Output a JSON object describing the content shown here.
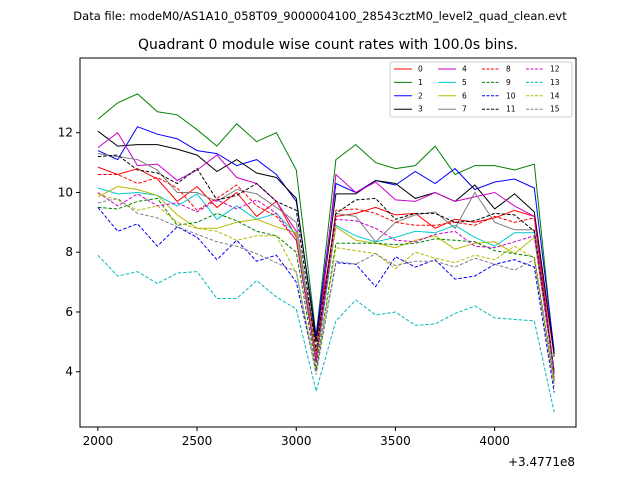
{
  "chart_data": {
    "type": "line",
    "suptitle": "Data file: modeM0/AS1A10_058T09_9000004100_28543cztM0_level2_quad_clean.evt",
    "title": "Quadrant 0 module wise count rates with 100.0s bins.",
    "xlabel": "",
    "ylabel": "",
    "offset_label": "+3.4771e8",
    "xlim": [
      1910,
      4410
    ],
    "ylim": [
      2.15,
      14.5
    ],
    "xticks": [
      2000,
      2500,
      3000,
      3500,
      4000
    ],
    "yticks": [
      4,
      6,
      8,
      10,
      12
    ],
    "grid": false,
    "legend_position": "top-right",
    "legend_columns": 4,
    "x": [
      2000,
      2100,
      2200,
      2300,
      2400,
      2500,
      2600,
      2700,
      2800,
      2900,
      3000,
      3100,
      3200,
      3300,
      3400,
      3500,
      3600,
      3700,
      3800,
      3900,
      4000,
      4100,
      4200,
      4300
    ],
    "series": [
      {
        "name": "0",
        "color": "#ff0000",
        "dash": "solid",
        "values": [
          10.85,
          10.6,
          10.8,
          10.45,
          9.7,
          10.2,
          9.5,
          10.0,
          9.2,
          9.7,
          8.5,
          5.0,
          9.2,
          9.3,
          9.5,
          9.25,
          9.3,
          8.8,
          9.1,
          9.0,
          9.15,
          9.4,
          9.2,
          4.5
        ]
      },
      {
        "name": "1",
        "color": "#008000",
        "dash": "solid",
        "values": [
          12.45,
          13.0,
          13.3,
          12.7,
          12.6,
          12.1,
          11.55,
          12.3,
          11.7,
          12.0,
          10.75,
          5.2,
          11.1,
          11.6,
          11.0,
          10.8,
          10.9,
          11.55,
          10.6,
          10.9,
          10.9,
          10.75,
          10.95,
          4.5
        ]
      },
      {
        "name": "2",
        "color": "#0000ff",
        "dash": "solid",
        "values": [
          11.4,
          11.1,
          12.2,
          11.95,
          11.8,
          11.4,
          11.3,
          10.9,
          11.1,
          10.6,
          9.7,
          5.2,
          10.3,
          10.0,
          10.4,
          10.25,
          10.7,
          10.3,
          10.8,
          10.1,
          10.35,
          10.45,
          10.15,
          4.7
        ]
      },
      {
        "name": "3",
        "color": "#000000",
        "dash": "solid",
        "values": [
          12.05,
          11.55,
          11.6,
          11.6,
          11.45,
          11.25,
          10.7,
          11.1,
          10.65,
          10.5,
          9.8,
          5.0,
          9.95,
          9.95,
          10.4,
          10.3,
          9.8,
          10.0,
          9.7,
          10.25,
          9.45,
          9.95,
          9.35,
          4.6
        ]
      },
      {
        "name": "4",
        "color": "#cc00cc",
        "dash": "solid",
        "values": [
          11.5,
          12.0,
          10.9,
          10.95,
          10.4,
          10.75,
          11.25,
          10.5,
          10.3,
          9.7,
          8.7,
          4.5,
          10.6,
          10.0,
          10.35,
          9.75,
          9.7,
          10.0,
          9.7,
          9.85,
          10.0,
          9.55,
          9.2,
          4.0
        ]
      },
      {
        "name": "5",
        "color": "#00cccc",
        "dash": "solid",
        "values": [
          10.15,
          9.95,
          10.0,
          9.9,
          9.55,
          9.95,
          9.1,
          9.55,
          9.1,
          9.3,
          8.6,
          4.3,
          8.9,
          8.55,
          8.35,
          8.5,
          8.7,
          8.65,
          8.9,
          8.5,
          8.2,
          8.65,
          8.65,
          4.0
        ]
      },
      {
        "name": "6",
        "color": "#b8b800",
        "dash": "solid",
        "values": [
          9.85,
          10.2,
          10.1,
          9.9,
          9.25,
          8.8,
          8.8,
          9.0,
          9.1,
          8.85,
          8.65,
          4.7,
          8.85,
          8.4,
          8.3,
          8.15,
          8.4,
          8.55,
          8.1,
          8.3,
          8.35,
          7.95,
          8.5,
          3.9
        ]
      },
      {
        "name": "7",
        "color": "#808080",
        "dash": "solid",
        "values": [
          11.3,
          11.2,
          11.1,
          10.75,
          10.0,
          10.0,
          9.7,
          10.1,
          9.95,
          9.5,
          9.0,
          4.4,
          9.3,
          9.2,
          8.35,
          9.0,
          9.25,
          9.35,
          8.8,
          10.0,
          9.0,
          8.75,
          8.75,
          4.0
        ]
      },
      {
        "name": "8",
        "color": "#ff0000",
        "dash": "dashed",
        "values": [
          10.6,
          10.6,
          10.3,
          10.5,
          10.15,
          9.4,
          9.8,
          10.25,
          9.55,
          9.2,
          8.4,
          4.4,
          9.4,
          9.45,
          9.3,
          9.0,
          8.9,
          8.9,
          9.0,
          8.9,
          9.2,
          9.0,
          9.15,
          3.8
        ]
      },
      {
        "name": "9",
        "color": "#008000",
        "dash": "dashed",
        "values": [
          9.5,
          9.45,
          9.7,
          9.8,
          8.9,
          9.0,
          9.3,
          9.05,
          8.7,
          8.55,
          8.0,
          4.1,
          8.3,
          8.3,
          8.3,
          8.25,
          8.3,
          8.45,
          8.4,
          8.35,
          8.05,
          7.95,
          7.85,
          3.7
        ]
      },
      {
        "name": "10",
        "color": "#0000ff",
        "dash": "dashed",
        "values": [
          9.5,
          8.7,
          8.95,
          8.2,
          8.85,
          8.5,
          7.75,
          8.4,
          7.7,
          7.9,
          7.0,
          4.0,
          7.65,
          7.6,
          6.85,
          7.85,
          7.5,
          7.75,
          7.1,
          7.2,
          7.6,
          7.75,
          7.5,
          3.3
        ]
      },
      {
        "name": "11",
        "color": "#000000",
        "dash": "dashed",
        "values": [
          11.2,
          11.25,
          10.75,
          10.65,
          10.3,
          10.8,
          9.75,
          9.9,
          10.3,
          9.7,
          9.4,
          4.7,
          9.3,
          9.75,
          9.8,
          9.1,
          9.3,
          9.3,
          9.0,
          9.05,
          9.3,
          9.25,
          8.7,
          4.0
        ]
      },
      {
        "name": "12",
        "color": "#cc00cc",
        "dash": "dashed",
        "values": [
          10.0,
          9.55,
          9.95,
          9.55,
          9.65,
          9.35,
          9.75,
          9.45,
          9.75,
          9.3,
          8.4,
          4.3,
          9.1,
          9.05,
          8.8,
          8.4,
          8.35,
          8.6,
          8.7,
          8.2,
          8.15,
          8.35,
          8.55,
          3.9
        ]
      },
      {
        "name": "13",
        "color": "#00bbbb",
        "dash": "dashed",
        "values": [
          7.9,
          7.2,
          7.35,
          6.95,
          7.3,
          7.35,
          6.45,
          6.45,
          7.05,
          6.5,
          6.1,
          3.35,
          5.7,
          6.4,
          5.9,
          6.0,
          5.55,
          5.6,
          5.95,
          6.2,
          5.8,
          5.75,
          5.7,
          2.65
        ]
      },
      {
        "name": "14",
        "color": "#b8b800",
        "dash": "dashed",
        "values": [
          9.95,
          9.75,
          9.4,
          9.55,
          9.0,
          8.8,
          8.7,
          8.4,
          8.55,
          8.55,
          7.3,
          4.0,
          8.15,
          8.05,
          7.95,
          7.45,
          8.0,
          7.8,
          7.65,
          7.9,
          7.75,
          8.2,
          7.8,
          3.6
        ]
      },
      {
        "name": "15",
        "color": "#808080",
        "dash": "dashed",
        "values": [
          9.65,
          9.8,
          9.3,
          9.15,
          8.85,
          8.6,
          8.35,
          8.2,
          7.95,
          7.65,
          7.35,
          3.9,
          7.7,
          7.6,
          7.95,
          7.55,
          7.7,
          7.7,
          7.5,
          7.8,
          7.6,
          7.4,
          7.75,
          3.5
        ]
      }
    ]
  }
}
